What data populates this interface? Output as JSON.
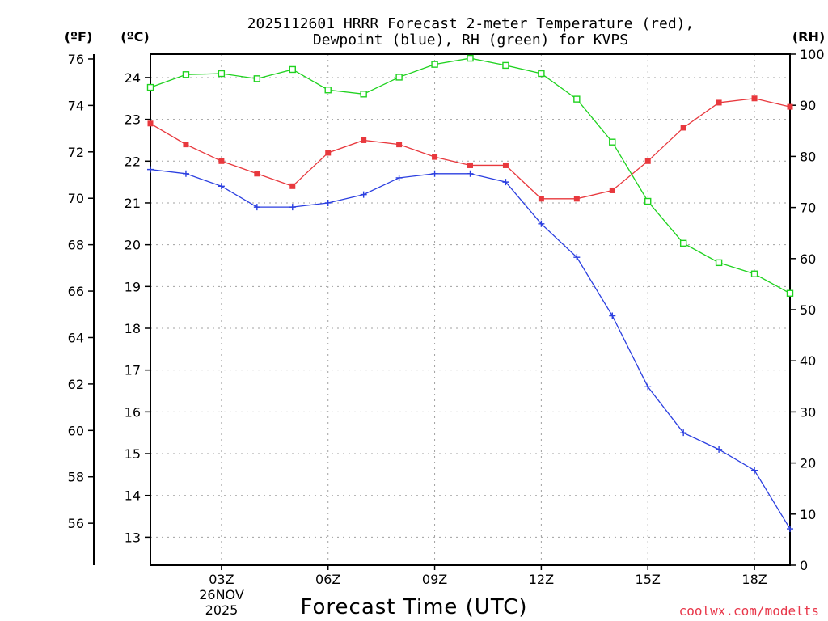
{
  "header": {
    "title_line1": "2025112601 HRRR Forecast 2-meter Temperature (red),",
    "title_line2": "Dewpoint (blue), RH (green) for KVPS",
    "unit_f": "(ºF)",
    "unit_c": "(ºC)",
    "unit_rh": "(RH)"
  },
  "footer": {
    "xlabel": "Forecast Time (UTC)",
    "date_day": "26NOV",
    "date_year": "2025",
    "credit": "coolwx.com/modelts"
  },
  "colors": {
    "temp": "#e8383d",
    "dewp": "#2b3fe0",
    "rh": "#1fd21f",
    "credit": "#e8374a"
  },
  "chart_data": {
    "type": "line",
    "title": "2025112601 HRRR Forecast 2-meter Temperature (red), Dewpoint (blue), RH (green) for KVPS",
    "xlabel": "Forecast Time (UTC)",
    "x_hours": [
      1,
      2,
      3,
      4,
      5,
      6,
      7,
      8,
      9,
      10,
      11,
      12,
      13,
      14,
      15,
      16,
      17,
      18,
      19
    ],
    "xlim": [
      1,
      19
    ],
    "x_ticks": [
      {
        "hour": 3,
        "label": "03Z"
      },
      {
        "hour": 6,
        "label": "06Z"
      },
      {
        "hour": 9,
        "label": "09Z"
      },
      {
        "hour": 12,
        "label": "12Z"
      },
      {
        "hour": 15,
        "label": "15Z"
      },
      {
        "hour": 18,
        "label": "18Z"
      }
    ],
    "y_celsius": {
      "label": "ºC",
      "range": [
        12.33,
        24.56
      ],
      "ticks": [
        13,
        14,
        15,
        16,
        17,
        18,
        19,
        20,
        21,
        22,
        23,
        24
      ]
    },
    "y_fahrenheit": {
      "label": "ºF",
      "ticks": [
        56,
        58,
        60,
        62,
        64,
        66,
        68,
        70,
        72,
        74,
        76
      ]
    },
    "y_rh": {
      "label": "RH",
      "range": [
        0,
        100
      ],
      "ticks": [
        0,
        10,
        20,
        30,
        40,
        50,
        60,
        70,
        80,
        90,
        100
      ]
    },
    "series": [
      {
        "name": "Temperature",
        "axis": "celsius",
        "marker": "filled-square",
        "values": [
          22.9,
          22.4,
          22.0,
          21.7,
          21.4,
          22.2,
          22.5,
          22.4,
          22.1,
          21.9,
          21.9,
          21.1,
          21.1,
          21.3,
          22.0,
          22.8,
          23.4,
          23.5,
          23.3
        ]
      },
      {
        "name": "Dewpoint",
        "axis": "celsius",
        "marker": "plus",
        "values": [
          21.8,
          21.7,
          21.4,
          20.9,
          20.9,
          21.0,
          21.2,
          21.6,
          21.7,
          21.7,
          21.5,
          20.5,
          19.7,
          18.3,
          16.6,
          15.5,
          15.1,
          14.6,
          13.2
        ]
      },
      {
        "name": "RH",
        "axis": "rh",
        "marker": "open-square",
        "values": [
          93.5,
          96.0,
          96.2,
          95.2,
          97.0,
          93.0,
          92.2,
          95.5,
          98.0,
          99.2,
          97.8,
          96.2,
          91.2,
          82.8,
          71.2,
          63.0,
          59.2,
          57.0,
          53.2
        ]
      }
    ]
  }
}
